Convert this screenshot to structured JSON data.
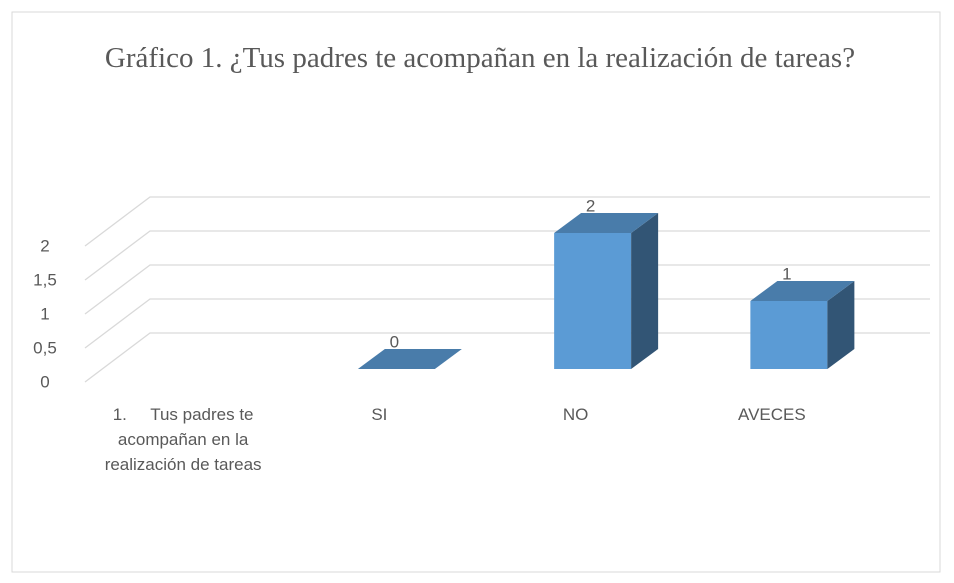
{
  "chart_data": {
    "type": "bar3d",
    "title": "Gráfico 1. ¿Tus padres te acompañan en la realización de tareas?",
    "categories": [
      "1.     Tus padres te acompañan en la realización de tareas",
      "SI",
      "NO",
      "AVECES"
    ],
    "values": [
      null,
      0,
      2,
      1
    ],
    "color": "#5b9bd5",
    "ylim": [
      0,
      2
    ],
    "yticks": [
      0,
      {
        "value": 0.5,
        "label": "0,5"
      },
      1,
      {
        "value": 1.5,
        "label": "1,5"
      },
      2
    ],
    "grid": true
  }
}
